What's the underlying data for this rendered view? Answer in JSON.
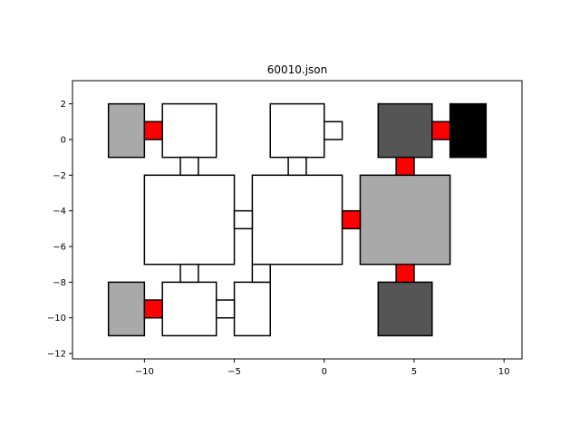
{
  "title": "60010.json",
  "colors": {
    "white_room": "#ffffff",
    "light_gray_room": "#a9a9a9",
    "dark_gray_room": "#555555",
    "black_room": "#000000",
    "red_door": "#ff0000",
    "edge": "#000000"
  },
  "chart_data": {
    "type": "diagram",
    "xlim": [
      -14,
      11
    ],
    "ylim": [
      -12.3,
      3.3
    ],
    "xticks": [
      -10,
      -5,
      0,
      5,
      10
    ],
    "yticks": [
      2,
      0,
      -2,
      -4,
      -6,
      -8,
      -10,
      -12
    ],
    "xtick_labels": [
      "−10",
      "−5",
      "0",
      "5",
      "10"
    ],
    "ytick_labels": [
      "2",
      "0",
      "−2",
      "−4",
      "−6",
      "−8",
      "−10",
      "−12"
    ],
    "rectangles": [
      {
        "name": "room-top-left-gray",
        "x": -12,
        "y": -1,
        "w": 2,
        "h": 3,
        "fill": "light_gray_room"
      },
      {
        "name": "room-top-left-white",
        "x": -9,
        "y": -1,
        "w": 3,
        "h": 3,
        "fill": "white_room"
      },
      {
        "name": "room-top-center-white",
        "x": -3,
        "y": -1,
        "w": 3,
        "h": 3,
        "fill": "white_room"
      },
      {
        "name": "room-top-right-dark",
        "x": 3,
        "y": -1,
        "w": 3,
        "h": 3,
        "fill": "dark_gray_room"
      },
      {
        "name": "room-top-right-black",
        "x": 7,
        "y": -1,
        "w": 2,
        "h": 3,
        "fill": "black_room"
      },
      {
        "name": "room-middle-left-white",
        "x": -10,
        "y": -7,
        "w": 5,
        "h": 5,
        "fill": "white_room"
      },
      {
        "name": "room-middle-center-white",
        "x": -4,
        "y": -7,
        "w": 5,
        "h": 5,
        "fill": "white_room"
      },
      {
        "name": "room-middle-right-gray",
        "x": 2,
        "y": -7,
        "w": 5,
        "h": 5,
        "fill": "light_gray_room"
      },
      {
        "name": "room-bottom-left-gray",
        "x": -12,
        "y": -11,
        "w": 2,
        "h": 3,
        "fill": "light_gray_room"
      },
      {
        "name": "room-bottom-left-white",
        "x": -9,
        "y": -11,
        "w": 3,
        "h": 3,
        "fill": "white_room"
      },
      {
        "name": "room-bottom-center-white",
        "x": -5,
        "y": -11,
        "w": 2,
        "h": 3,
        "fill": "white_room"
      },
      {
        "name": "room-bottom-right-dark",
        "x": 3,
        "y": -11,
        "w": 3,
        "h": 3,
        "fill": "dark_gray_room"
      },
      {
        "name": "door-top-left",
        "x": -10,
        "y": 0,
        "w": 1,
        "h": 1,
        "fill": "red_door"
      },
      {
        "name": "door-top-right-black",
        "x": 6,
        "y": 0,
        "w": 1,
        "h": 1,
        "fill": "red_door"
      },
      {
        "name": "door-top-right-vertical",
        "x": 4,
        "y": -2,
        "w": 1,
        "h": 1,
        "fill": "red_door"
      },
      {
        "name": "door-middle-right",
        "x": 1,
        "y": -5,
        "w": 1,
        "h": 1,
        "fill": "red_door"
      },
      {
        "name": "door-bottom-right-vertical",
        "x": 4,
        "y": -8,
        "w": 1,
        "h": 1,
        "fill": "red_door"
      },
      {
        "name": "door-bottom-left",
        "x": -10,
        "y": -10,
        "w": 1,
        "h": 1,
        "fill": "red_door"
      },
      {
        "name": "corridor-top-center-right",
        "x": 0,
        "y": 0,
        "w": 1,
        "h": 1,
        "fill": "white_room"
      },
      {
        "name": "corridor-left-vertical-top",
        "x": -8,
        "y": -2,
        "w": 1,
        "h": 1,
        "fill": "white_room"
      },
      {
        "name": "corridor-center-vertical-top",
        "x": -2,
        "y": -2,
        "w": 1,
        "h": 1,
        "fill": "white_room"
      },
      {
        "name": "corridor-middle-horizontal",
        "x": -5,
        "y": -5,
        "w": 1,
        "h": 1,
        "fill": "white_room"
      },
      {
        "name": "corridor-left-vertical-bottom",
        "x": -8,
        "y": -8,
        "w": 1,
        "h": 1,
        "fill": "white_room"
      },
      {
        "name": "corridor-center-vertical-bottom",
        "x": -4,
        "y": -8,
        "w": 1,
        "h": 1,
        "fill": "white_room"
      },
      {
        "name": "corridor-bottom-horizontal",
        "x": -6,
        "y": -10,
        "w": 1,
        "h": 1,
        "fill": "white_room"
      }
    ]
  }
}
